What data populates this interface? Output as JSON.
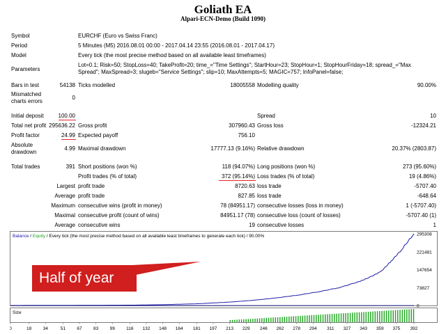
{
  "header": {
    "title": "Goliath EA",
    "subtitle": "Alpari-ECN-Demo (Build 1090)"
  },
  "info": {
    "symbol_label": "Symbol",
    "symbol_value": "EURCHF (Euro vs Swiss Franc)",
    "period_label": "Period",
    "period_value": "5 Minutes (M5) 2016.08.01 00:00 - 2017.04.14 23:55 (2016.08.01 - 2017.04.17)",
    "model_label": "Model",
    "model_value": "Every tick (the most precise method based on all available least timeframes)",
    "parameters_label": "Parameters",
    "parameters_line1": "Lot=0.1; Risk=50; StopLoss=40; TakeProfit=20; time_=\"Time Settings\"; StartHour=23; StopHour=1; StopHourFriday=18; spread_=\"Max",
    "parameters_line2": "Spread\"; MaxSpread=3; slugeb=\"Service Settings\"; slip=10; MaxAttempts=5; MAGIC=757; InfoPanel=false;"
  },
  "stats": {
    "bars_label": "Bars in test",
    "bars_value": "54138",
    "ticks_label": "Ticks modelled",
    "ticks_value": "18005558",
    "quality_label": "Modelling quality",
    "quality_value": "90.00%",
    "mismatch_label1": "Mismatched",
    "mismatch_label2": "charts errors",
    "mismatch_value": "0",
    "deposit_label": "Initial deposit",
    "deposit_value": "100.00",
    "spread_label": "Spread",
    "spread_value": "10",
    "netprofit_label": "Total net profit",
    "netprofit_value": "295636.22",
    "grossprofit_label": "Gross profit",
    "grossprofit_value": "307960.43",
    "grossloss_label": "Gross loss",
    "grossloss_value": "-12324.21",
    "pf_label": "Profit factor",
    "pf_value": "24.99",
    "payoff_label": "Expected payoff",
    "payoff_value": "756.10",
    "absdd_label1": "Absolute",
    "absdd_label2": "drawdown",
    "absdd_value": "4.99",
    "maxdd_label": "Maximal drawdown",
    "maxdd_value": "17777.13 (9.16%)",
    "reldd_label": "Relative drawdown",
    "reldd_value": "20.37% (2803.87)",
    "trades_label": "Total trades",
    "trades_value": "391",
    "short_label": "Short positions (won %)",
    "short_value": "118 (94.07%)",
    "long_label": "Long positions (won %)",
    "long_value": "273 (95.60%)",
    "ptrades_label": "Profit trades (% of total)",
    "ptrades_value": "372 (95.14%)",
    "ltrades_label": "Loss trades (% of total)",
    "ltrades_value": "19 (4.86%)",
    "largest_label": "Largest",
    "lpt_label": "profit trade",
    "lpt_value": "8720.63",
    "llt_label": "loss trade",
    "llt_value": "-5707.40",
    "average_label": "Average",
    "apt_label": "profit trade",
    "apt_value": "827.85",
    "alt_label": "loss trade",
    "alt_value": "-648.64",
    "maximum_label": "Maximum",
    "mcw_label": "consecutive wins (profit in money)",
    "mcw_value": "78 (84951.17)",
    "mcl_label": "consecutive losses (loss in money)",
    "mcl_value": "1 (-5707.40)",
    "maximal_label": "Maximal",
    "mcp_label": "consecutive profit (count of wins)",
    "mcp_value": "84951.17 (78)",
    "mcloss_label": "consecutive loss (count of losses)",
    "mcloss_value": "-5707.40 (1)",
    "average2_label": "Average",
    "acw_label": "consecutive wins",
    "acw_value": "19",
    "acl_label": "consecutive losses",
    "acl_value": "1"
  },
  "chart": {
    "legend_balance": "Balance",
    "legend_sep": " / ",
    "legend_equity": "Equity",
    "legend_rest": " / Every tick (the most precise method based on all available least timeframes to generate each tick) / 90.00%",
    "size_label": "Size",
    "balance_color": "#1c1ca8",
    "equity_color": "#1e9e1e",
    "volume_color": "#1aa51a",
    "callout": "Half of year"
  },
  "chart_data": {
    "type": "line",
    "y_ticks": [
      "295308",
      "221481",
      "147654",
      "73827",
      "0"
    ],
    "ylim": [
      0,
      295308
    ],
    "x_ticks": [
      "0",
      "18",
      "34",
      "51",
      "67",
      "83",
      "99",
      "116",
      "132",
      "148",
      "164",
      "181",
      "197",
      "213",
      "229",
      "246",
      "262",
      "278",
      "294",
      "311",
      "327",
      "343",
      "359",
      "375",
      "392"
    ],
    "xlim": [
      0,
      392
    ],
    "series": [
      {
        "name": "Balance",
        "x": [
          0,
          60,
          120,
          150,
          180,
          200,
          220,
          240,
          260,
          280,
          300,
          320,
          340,
          350,
          360,
          370,
          380,
          392
        ],
        "values": [
          100,
          400,
          1500,
          3500,
          7000,
          11000,
          16000,
          23000,
          32000,
          43000,
          57000,
          74000,
          100000,
          118000,
          140000,
          183000,
          230000,
          295636
        ]
      }
    ]
  }
}
